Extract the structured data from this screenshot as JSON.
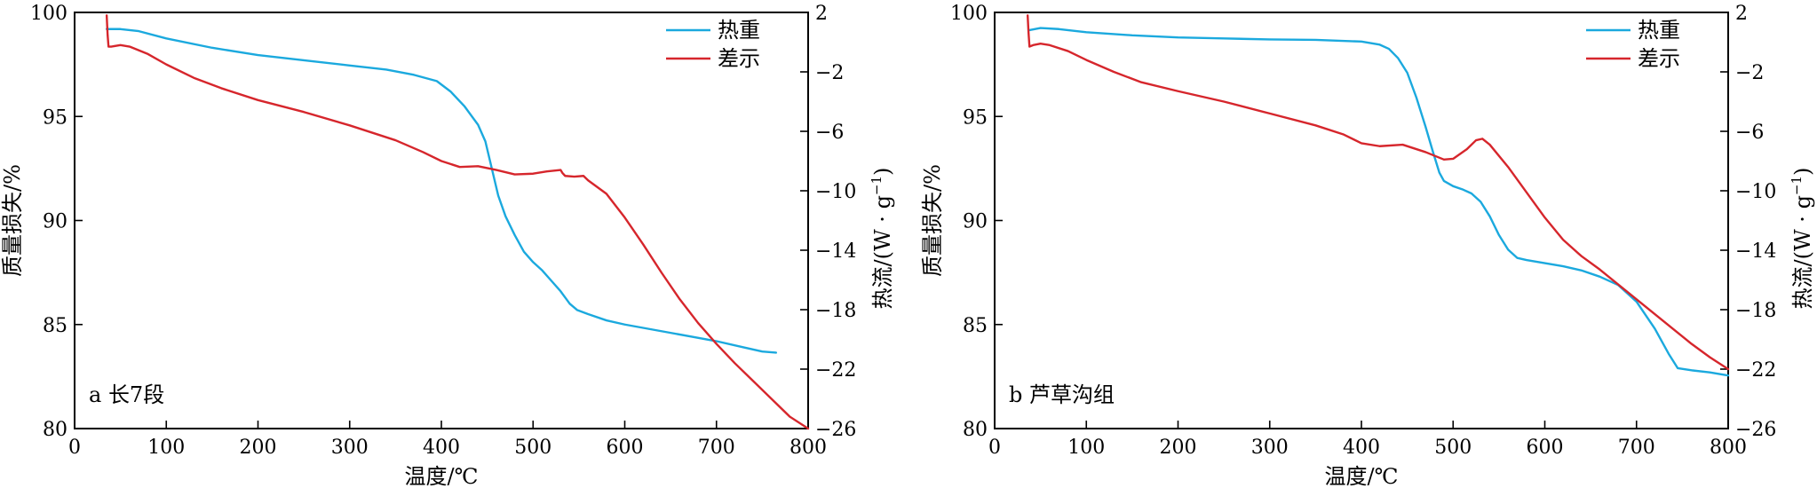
{
  "colors": {
    "tg": "#1ba9de",
    "dsc": "#d6262c"
  },
  "legend": {
    "tg": "热重",
    "dsc": "差示"
  },
  "labels": {
    "xlabel": "温度/℃",
    "ylabel_left": "质量损失/%",
    "ylabel_right_main": "热流/(W · g",
    "ylabel_right_sup": "−1",
    "ylabel_right_close": ")"
  },
  "chart_data": [
    {
      "type": "line",
      "panel_label": "a 长7段",
      "xlim": [
        0,
        800
      ],
      "xticks": [
        0,
        100,
        200,
        300,
        400,
        500,
        600,
        700,
        800
      ],
      "ylim_left": [
        80,
        100
      ],
      "yticks_left": [
        80,
        85,
        90,
        95,
        100
      ],
      "ylim_right": [
        -26,
        2
      ],
      "yticks_right": [
        -26,
        -22,
        -18,
        -14,
        -10,
        -6,
        -2,
        2
      ],
      "grid": false,
      "legend_position": "top-right",
      "series": [
        {
          "key": "tg",
          "axis": "left",
          "points": [
            [
              35,
              99.2
            ],
            [
              50,
              99.2
            ],
            [
              70,
              99.1
            ],
            [
              100,
              98.75
            ],
            [
              150,
              98.3
            ],
            [
              200,
              97.95
            ],
            [
              250,
              97.7
            ],
            [
              300,
              97.45
            ],
            [
              340,
              97.25
            ],
            [
              370,
              97.0
            ],
            [
              395,
              96.7
            ],
            [
              410,
              96.2
            ],
            [
              425,
              95.5
            ],
            [
              440,
              94.6
            ],
            [
              448,
              93.8
            ],
            [
              455,
              92.5
            ],
            [
              462,
              91.2
            ],
            [
              470,
              90.2
            ],
            [
              480,
              89.3
            ],
            [
              490,
              88.5
            ],
            [
              500,
              88.0
            ],
            [
              510,
              87.6
            ],
            [
              520,
              87.1
            ],
            [
              530,
              86.6
            ],
            [
              540,
              86.0
            ],
            [
              548,
              85.7
            ],
            [
              560,
              85.5
            ],
            [
              580,
              85.2
            ],
            [
              600,
              85.0
            ],
            [
              650,
              84.6
            ],
            [
              700,
              84.2
            ],
            [
              730,
              83.9
            ],
            [
              750,
              83.7
            ],
            [
              765,
              83.65
            ]
          ]
        },
        {
          "key": "dsc",
          "axis": "right",
          "points": [
            [
              35,
              1.8
            ],
            [
              36,
              0.5
            ],
            [
              37,
              -0.3
            ],
            [
              40,
              -0.3
            ],
            [
              50,
              -0.2
            ],
            [
              60,
              -0.3
            ],
            [
              80,
              -0.8
            ],
            [
              100,
              -1.5
            ],
            [
              130,
              -2.4
            ],
            [
              160,
              -3.1
            ],
            [
              200,
              -3.9
            ],
            [
              250,
              -4.7
            ],
            [
              300,
              -5.6
            ],
            [
              350,
              -6.6
            ],
            [
              380,
              -7.4
            ],
            [
              400,
              -8.0
            ],
            [
              420,
              -8.4
            ],
            [
              440,
              -8.35
            ],
            [
              460,
              -8.6
            ],
            [
              480,
              -8.9
            ],
            [
              500,
              -8.85
            ],
            [
              515,
              -8.7
            ],
            [
              530,
              -8.6
            ],
            [
              532,
              -8.8
            ],
            [
              535,
              -9.0
            ],
            [
              545,
              -9.05
            ],
            [
              555,
              -9.0
            ],
            [
              560,
              -9.3
            ],
            [
              580,
              -10.2
            ],
            [
              600,
              -11.8
            ],
            [
              620,
              -13.6
            ],
            [
              640,
              -15.5
            ],
            [
              660,
              -17.3
            ],
            [
              680,
              -18.9
            ],
            [
              700,
              -20.3
            ],
            [
              720,
              -21.6
            ],
            [
              740,
              -22.8
            ],
            [
              760,
              -24.0
            ],
            [
              780,
              -25.2
            ],
            [
              800,
              -26.0
            ]
          ]
        }
      ]
    },
    {
      "type": "line",
      "panel_label": "b 芦草沟组",
      "xlim": [
        0,
        800
      ],
      "xticks": [
        0,
        100,
        200,
        300,
        400,
        500,
        600,
        700,
        800
      ],
      "ylim_left": [
        80,
        100
      ],
      "yticks_left": [
        80,
        85,
        90,
        95,
        100
      ],
      "ylim_right": [
        -26,
        2
      ],
      "yticks_right": [
        -26,
        -22,
        -18,
        -14,
        -10,
        -6,
        -2,
        2
      ],
      "grid": false,
      "legend_position": "top-right",
      "series": [
        {
          "key": "tg",
          "axis": "left",
          "points": [
            [
              38,
              99.15
            ],
            [
              50,
              99.25
            ],
            [
              70,
              99.2
            ],
            [
              100,
              99.05
            ],
            [
              150,
              98.9
            ],
            [
              200,
              98.8
            ],
            [
              250,
              98.75
            ],
            [
              300,
              98.7
            ],
            [
              350,
              98.68
            ],
            [
              400,
              98.6
            ],
            [
              420,
              98.45
            ],
            [
              430,
              98.25
            ],
            [
              440,
              97.8
            ],
            [
              450,
              97.1
            ],
            [
              460,
              95.9
            ],
            [
              470,
              94.5
            ],
            [
              478,
              93.3
            ],
            [
              485,
              92.3
            ],
            [
              490,
              91.9
            ],
            [
              500,
              91.65
            ],
            [
              510,
              91.5
            ],
            [
              520,
              91.3
            ],
            [
              530,
              90.9
            ],
            [
              540,
              90.2
            ],
            [
              550,
              89.3
            ],
            [
              560,
              88.6
            ],
            [
              570,
              88.2
            ],
            [
              580,
              88.1
            ],
            [
              600,
              87.95
            ],
            [
              620,
              87.8
            ],
            [
              640,
              87.6
            ],
            [
              660,
              87.3
            ],
            [
              680,
              86.9
            ],
            [
              700,
              86.1
            ],
            [
              720,
              84.8
            ],
            [
              735,
              83.6
            ],
            [
              745,
              82.9
            ],
            [
              760,
              82.8
            ],
            [
              780,
              82.7
            ],
            [
              800,
              82.55
            ]
          ]
        },
        {
          "key": "dsc",
          "axis": "right",
          "points": [
            [
              36,
              1.8
            ],
            [
              37,
              0.6
            ],
            [
              38,
              -0.3
            ],
            [
              42,
              -0.2
            ],
            [
              50,
              -0.1
            ],
            [
              60,
              -0.2
            ],
            [
              80,
              -0.6
            ],
            [
              100,
              -1.2
            ],
            [
              130,
              -2.0
            ],
            [
              160,
              -2.7
            ],
            [
              200,
              -3.3
            ],
            [
              250,
              -4.0
            ],
            [
              300,
              -4.8
            ],
            [
              350,
              -5.6
            ],
            [
              380,
              -6.2
            ],
            [
              400,
              -6.8
            ],
            [
              420,
              -7.0
            ],
            [
              445,
              -6.9
            ],
            [
              470,
              -7.4
            ],
            [
              490,
              -7.9
            ],
            [
              500,
              -7.85
            ],
            [
              515,
              -7.2
            ],
            [
              525,
              -6.6
            ],
            [
              532,
              -6.5
            ],
            [
              540,
              -6.9
            ],
            [
              560,
              -8.4
            ],
            [
              580,
              -10.1
            ],
            [
              600,
              -11.8
            ],
            [
              620,
              -13.3
            ],
            [
              640,
              -14.4
            ],
            [
              660,
              -15.3
            ],
            [
              680,
              -16.3
            ],
            [
              700,
              -17.3
            ],
            [
              720,
              -18.3
            ],
            [
              740,
              -19.3
            ],
            [
              760,
              -20.3
            ],
            [
              780,
              -21.2
            ],
            [
              800,
              -22.0
            ]
          ]
        }
      ]
    }
  ]
}
